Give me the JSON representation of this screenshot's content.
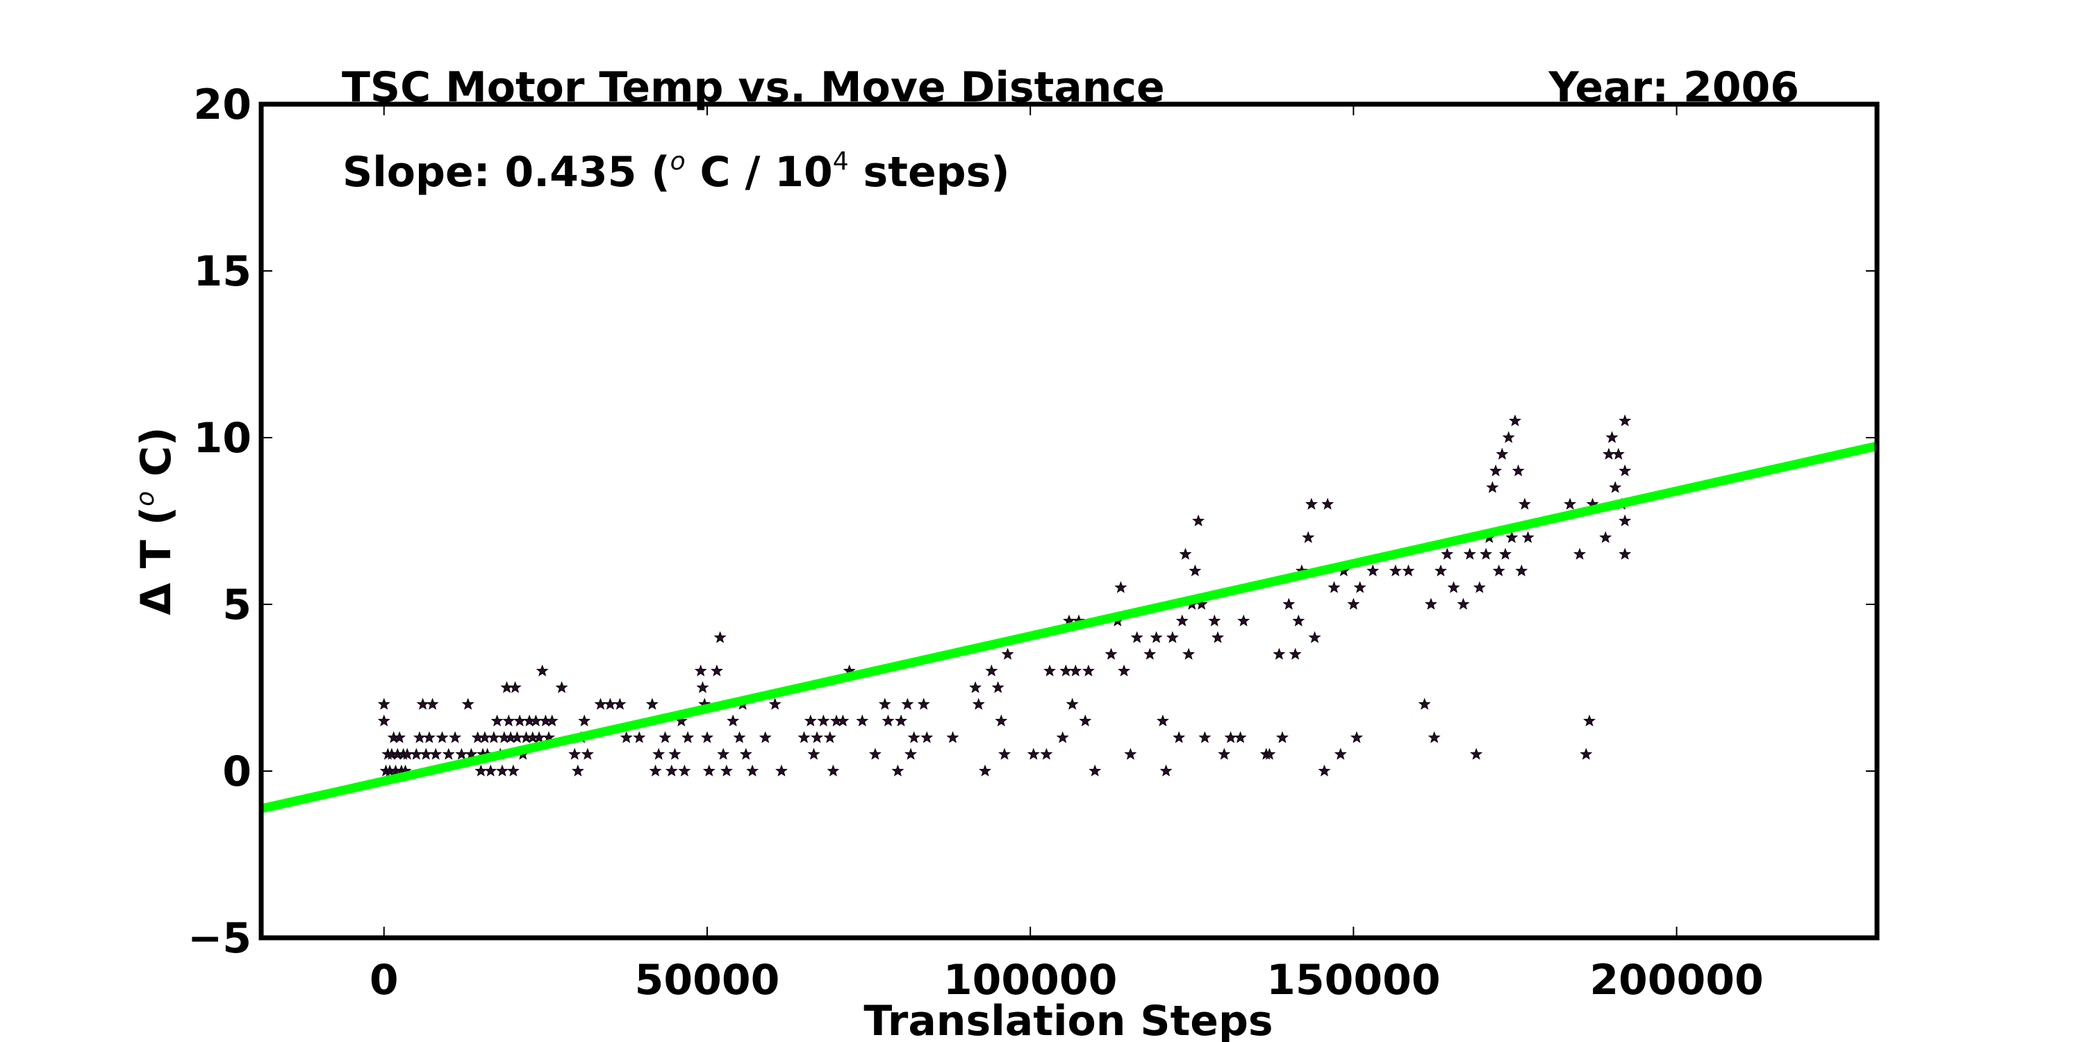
{
  "chart_data": {
    "type": "scatter",
    "title": "TSC Motor Temp vs. Move Distance",
    "year_label": "Year: 2006",
    "slope_label": {
      "prefix": "Slope:  0.435 (",
      "sup_o": "o",
      "mid": " C / 10",
      "sup_4": "4",
      "suffix": "  steps)"
    },
    "xlabel": "Translation Steps",
    "ylabel": {
      "prefix": "Δ T (",
      "sup_o": "o",
      "suffix": " C)"
    },
    "xlim": [
      -19000,
      231000
    ],
    "ylim": [
      -5,
      20
    ],
    "xticks": [
      0,
      50000,
      100000,
      150000,
      200000
    ],
    "yticks": [
      -5,
      0,
      5,
      10,
      15,
      20
    ],
    "xtick_labels": [
      "0",
      "50000",
      "100000",
      "150000",
      "200000"
    ],
    "ytick_labels": [
      "−5",
      "0",
      "5",
      "10",
      "15",
      "20"
    ],
    "fit_line": {
      "slope_per_1e4_steps": 0.435,
      "intercept": -0.3,
      "color": "#00ff00"
    },
    "marker_color": "#2a0a2a",
    "points": [
      [
        0,
        2.0
      ],
      [
        0,
        1.5
      ],
      [
        300,
        0.0
      ],
      [
        600,
        0.5
      ],
      [
        900,
        0.0
      ],
      [
        1200,
        0.5
      ],
      [
        1500,
        1.0
      ],
      [
        1800,
        0.0
      ],
      [
        2100,
        0.5
      ],
      [
        2400,
        1.0
      ],
      [
        2700,
        0.0
      ],
      [
        3000,
        0.5
      ],
      [
        3300,
        0.0
      ],
      [
        3600,
        0.5
      ],
      [
        5000,
        0.5
      ],
      [
        5500,
        1.0
      ],
      [
        6000,
        2.0
      ],
      [
        6500,
        0.5
      ],
      [
        7000,
        1.0
      ],
      [
        7500,
        2.0
      ],
      [
        8000,
        0.5
      ],
      [
        9000,
        1.0
      ],
      [
        10000,
        0.5
      ],
      [
        11000,
        1.0
      ],
      [
        12000,
        0.5
      ],
      [
        13000,
        2.0
      ],
      [
        13500,
        0.5
      ],
      [
        14500,
        1.0
      ],
      [
        15000,
        0.0
      ],
      [
        15300,
        0.5
      ],
      [
        15600,
        1.0
      ],
      [
        16000,
        0.5
      ],
      [
        16500,
        0.0
      ],
      [
        17000,
        1.0
      ],
      [
        17500,
        1.5
      ],
      [
        18000,
        0.5
      ],
      [
        18300,
        0.0
      ],
      [
        18600,
        1.0
      ],
      [
        19000,
        2.5
      ],
      [
        19300,
        1.5
      ],
      [
        19600,
        1.0
      ],
      [
        20000,
        0.0
      ],
      [
        20300,
        2.5
      ],
      [
        20600,
        1.0
      ],
      [
        21000,
        1.5
      ],
      [
        21500,
        0.5
      ],
      [
        22000,
        1.0
      ],
      [
        22500,
        1.5
      ],
      [
        23000,
        1.0
      ],
      [
        23500,
        1.5
      ],
      [
        24000,
        1.0
      ],
      [
        24500,
        3.0
      ],
      [
        25000,
        1.5
      ],
      [
        25500,
        1.0
      ],
      [
        26000,
        1.5
      ],
      [
        27500,
        2.5
      ],
      [
        29500,
        0.5
      ],
      [
        30000,
        0.0
      ],
      [
        30500,
        1.0
      ],
      [
        31000,
        1.5
      ],
      [
        31500,
        0.5
      ],
      [
        33500,
        2.0
      ],
      [
        35000,
        2.0
      ],
      [
        36500,
        2.0
      ],
      [
        37500,
        1.0
      ],
      [
        39500,
        1.0
      ],
      [
        41500,
        2.0
      ],
      [
        42000,
        0.0
      ],
      [
        42500,
        0.5
      ],
      [
        43500,
        1.0
      ],
      [
        44500,
        0.0
      ],
      [
        45000,
        0.5
      ],
      [
        46000,
        1.5
      ],
      [
        46500,
        0.0
      ],
      [
        47000,
        1.0
      ],
      [
        49000,
        3.0
      ],
      [
        49300,
        2.5
      ],
      [
        49600,
        2.0
      ],
      [
        50000,
        1.0
      ],
      [
        50300,
        0.0
      ],
      [
        51500,
        3.0
      ],
      [
        52000,
        4.0
      ],
      [
        52500,
        0.5
      ],
      [
        53000,
        0.0
      ],
      [
        54000,
        1.5
      ],
      [
        55000,
        1.0
      ],
      [
        55500,
        2.0
      ],
      [
        56000,
        0.5
      ],
      [
        57000,
        0.0
      ],
      [
        59000,
        1.0
      ],
      [
        60500,
        2.0
      ],
      [
        61500,
        0.0
      ],
      [
        65000,
        1.0
      ],
      [
        66000,
        1.5
      ],
      [
        66500,
        0.5
      ],
      [
        67000,
        1.0
      ],
      [
        68000,
        1.5
      ],
      [
        69000,
        1.0
      ],
      [
        69500,
        0.0
      ],
      [
        70000,
        1.5
      ],
      [
        71000,
        1.5
      ],
      [
        72000,
        3.0
      ],
      [
        74000,
        1.5
      ],
      [
        76000,
        0.5
      ],
      [
        77500,
        2.0
      ],
      [
        78000,
        1.5
      ],
      [
        79500,
        0.0
      ],
      [
        80000,
        1.5
      ],
      [
        81000,
        2.0
      ],
      [
        81500,
        0.5
      ],
      [
        82000,
        1.0
      ],
      [
        83500,
        2.0
      ],
      [
        84000,
        1.0
      ],
      [
        88000,
        1.0
      ],
      [
        91500,
        2.5
      ],
      [
        92000,
        2.0
      ],
      [
        93000,
        0.0
      ],
      [
        94000,
        3.0
      ],
      [
        95000,
        2.5
      ],
      [
        95500,
        1.5
      ],
      [
        96000,
        0.5
      ],
      [
        96500,
        3.5
      ],
      [
        100500,
        0.5
      ],
      [
        102500,
        0.5
      ],
      [
        103000,
        3.0
      ],
      [
        105000,
        1.0
      ],
      [
        105500,
        3.0
      ],
      [
        106000,
        4.5
      ],
      [
        106500,
        2.0
      ],
      [
        107000,
        3.0
      ],
      [
        107500,
        4.5
      ],
      [
        108500,
        1.5
      ],
      [
        109000,
        3.0
      ],
      [
        110000,
        0.0
      ],
      [
        112500,
        3.5
      ],
      [
        113500,
        4.5
      ],
      [
        114000,
        5.5
      ],
      [
        114500,
        3.0
      ],
      [
        115500,
        0.5
      ],
      [
        116500,
        4.0
      ],
      [
        118500,
        3.5
      ],
      [
        119500,
        4.0
      ],
      [
        120500,
        1.5
      ],
      [
        121000,
        0.0
      ],
      [
        122000,
        4.0
      ],
      [
        123000,
        1.0
      ],
      [
        123500,
        4.5
      ],
      [
        124000,
        6.5
      ],
      [
        124500,
        3.5
      ],
      [
        125000,
        5.0
      ],
      [
        125500,
        6.0
      ],
      [
        126000,
        7.5
      ],
      [
        126500,
        5.0
      ],
      [
        127000,
        1.0
      ],
      [
        128500,
        4.5
      ],
      [
        129000,
        4.0
      ],
      [
        130000,
        0.5
      ],
      [
        131000,
        1.0
      ],
      [
        132500,
        1.0
      ],
      [
        133000,
        4.5
      ],
      [
        136500,
        0.5
      ],
      [
        137000,
        0.5
      ],
      [
        138500,
        3.5
      ],
      [
        139000,
        1.0
      ],
      [
        140000,
        5.0
      ],
      [
        141000,
        3.5
      ],
      [
        141500,
        4.5
      ],
      [
        142000,
        6.0
      ],
      [
        143000,
        7.0
      ],
      [
        143500,
        8.0
      ],
      [
        144000,
        4.0
      ],
      [
        145500,
        0.0
      ],
      [
        146000,
        8.0
      ],
      [
        147000,
        5.5
      ],
      [
        148000,
        0.5
      ],
      [
        148500,
        6.0
      ],
      [
        150000,
        5.0
      ],
      [
        150500,
        1.0
      ],
      [
        151000,
        5.5
      ],
      [
        153000,
        6.0
      ],
      [
        156500,
        6.0
      ],
      [
        158500,
        6.0
      ],
      [
        161000,
        2.0
      ],
      [
        162000,
        5.0
      ],
      [
        162500,
        1.0
      ],
      [
        163500,
        6.0
      ],
      [
        164500,
        6.5
      ],
      [
        165500,
        5.5
      ],
      [
        167000,
        5.0
      ],
      [
        168000,
        6.5
      ],
      [
        169000,
        0.5
      ],
      [
        169500,
        5.5
      ],
      [
        170500,
        6.5
      ],
      [
        171000,
        7.0
      ],
      [
        171500,
        8.5
      ],
      [
        172000,
        9.0
      ],
      [
        172500,
        6.0
      ],
      [
        173000,
        9.5
      ],
      [
        173500,
        6.5
      ],
      [
        174000,
        10.0
      ],
      [
        174500,
        7.0
      ],
      [
        175000,
        10.5
      ],
      [
        175500,
        9.0
      ],
      [
        176000,
        6.0
      ],
      [
        176500,
        8.0
      ],
      [
        177000,
        7.0
      ],
      [
        183500,
        8.0
      ],
      [
        185000,
        6.5
      ],
      [
        186000,
        0.5
      ],
      [
        186500,
        1.5
      ],
      [
        187000,
        8.0
      ],
      [
        189000,
        7.0
      ],
      [
        189500,
        9.5
      ],
      [
        190000,
        10.0
      ],
      [
        190500,
        8.5
      ],
      [
        191000,
        9.5
      ],
      [
        191500,
        8.0
      ],
      [
        192000,
        10.5
      ],
      [
        192000,
        6.5
      ],
      [
        192000,
        7.5
      ],
      [
        192000,
        9.0
      ]
    ]
  }
}
